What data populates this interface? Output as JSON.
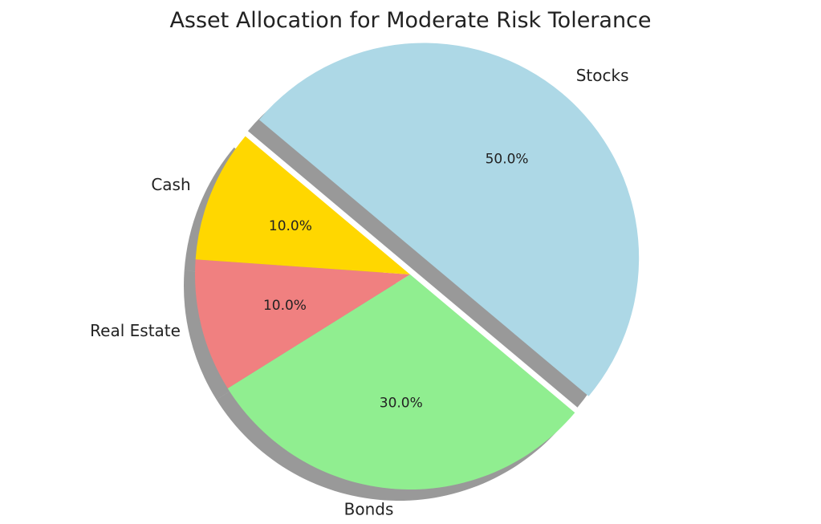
{
  "chart_data": {
    "type": "pie",
    "title": "Asset Allocation for Moderate Risk Tolerance",
    "categories": [
      "Stocks",
      "Bonds",
      "Real Estate",
      "Cash"
    ],
    "values": [
      50,
      30,
      10,
      10
    ],
    "percent_labels": [
      "50.0%",
      "30.0%",
      "10.0%",
      "10.0%"
    ],
    "colors": [
      "#add8e6",
      "#90ee90",
      "#f08080",
      "#ffd700"
    ],
    "exploded": [
      "Stocks"
    ],
    "shadow": true,
    "start_angle_degrees": 140,
    "direction": "clockwise"
  }
}
